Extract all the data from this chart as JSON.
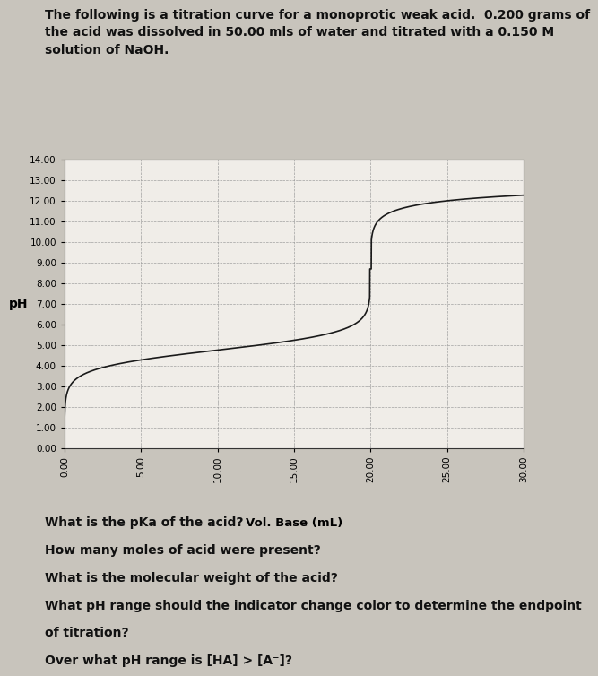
{
  "title_text": "The following is a titration curve for a monoprotic weak acid.  0.200 grams of\nthe acid was dissolved in 50.00 mls of water and titrated with a 0.150 M\nsolution of NaOH.",
  "ylabel": "pH",
  "xlabel": "Vol. Base (mL)",
  "ylim": [
    0.0,
    14.0
  ],
  "xlim": [
    0.0,
    30.0
  ],
  "yticks": [
    0.0,
    1.0,
    2.0,
    3.0,
    4.0,
    5.0,
    6.0,
    7.0,
    8.0,
    9.0,
    10.0,
    11.0,
    12.0,
    13.0,
    14.0
  ],
  "xticks": [
    0.0,
    5.0,
    10.0,
    15.0,
    20.0,
    25.0,
    30.0
  ],
  "background_color": "#c8c4bc",
  "plot_bg_color": "#f0ede8",
  "questions": [
    "What is the pKa of the acid?",
    "How many moles of acid were present?",
    "What is the molecular weight of the acid?",
    "What pH range should the indicator change color to determine the endpoint",
    "of titration?",
    "Over what pH range is [HA] > [A⁻]?"
  ],
  "pKa": 4.75,
  "equivalence_vol": 20.0,
  "initial_pH": 3.0,
  "final_pH": 12.2,
  "title_fontsize": 10,
  "question_fontsize": 10,
  "tick_fontsize": 7.5
}
